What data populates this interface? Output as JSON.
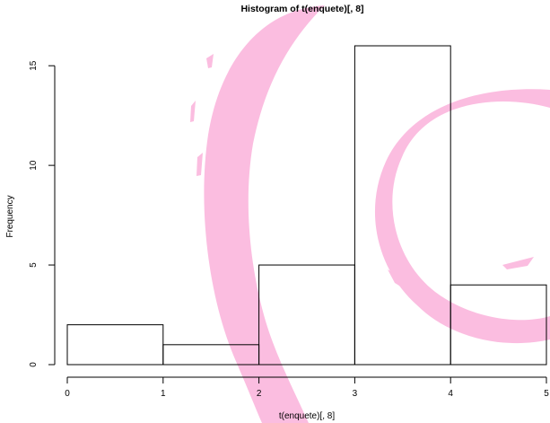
{
  "chart_data": {
    "type": "bar",
    "title": "Histogram of t(enquete)[, 8]",
    "xlabel": "t(enquete)[, 8]",
    "ylabel": "Frequency",
    "bins": [
      {
        "x0": 0,
        "x1": 1,
        "count": 2
      },
      {
        "x0": 1,
        "x1": 2,
        "count": 1
      },
      {
        "x0": 2,
        "x1": 3,
        "count": 5
      },
      {
        "x0": 3,
        "x1": 4,
        "count": 16
      },
      {
        "x0": 4,
        "x1": 5,
        "count": 4
      }
    ],
    "xlim": [
      0,
      5
    ],
    "ylim": [
      0,
      16
    ],
    "xticks": [
      "0",
      "1",
      "2",
      "3",
      "4",
      "5"
    ],
    "yticks": [
      "0",
      "5",
      "10",
      "15"
    ],
    "grid": false,
    "legend": "none"
  },
  "colors": {
    "bar_fill": "#ffffff",
    "bar_stroke": "#000000",
    "watermark": "#fbbde0"
  },
  "watermark": "debian-swirl-logo"
}
